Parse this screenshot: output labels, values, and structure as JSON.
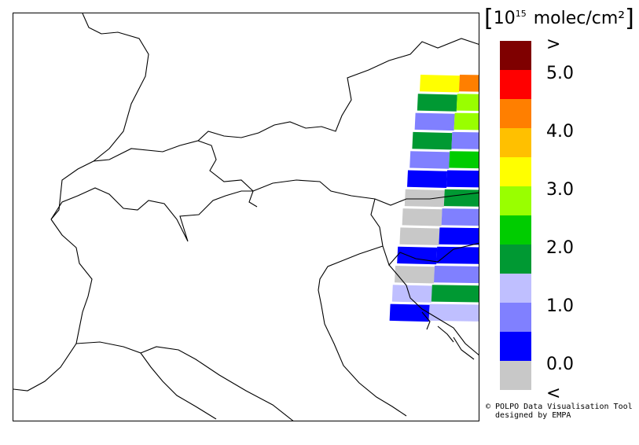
{
  "legend": {
    "unit_prefix": "10",
    "unit_exponent": "15",
    "unit_suffix": "molec/cm²",
    "classes": [
      {
        "color": "#7f0000",
        "label": ">"
      },
      {
        "color": "#ff0000",
        "label": "5.0"
      },
      {
        "color": "#ff7f00",
        "label": ""
      },
      {
        "color": "#ffc000",
        "label": "4.0"
      },
      {
        "color": "#ffff00",
        "label": ""
      },
      {
        "color": "#99ff00",
        "label": "3.0"
      },
      {
        "color": "#00cc00",
        "label": ""
      },
      {
        "color": "#009933",
        "label": "2.0"
      },
      {
        "color": "#bfbfff",
        "label": ""
      },
      {
        "color": "#8080ff",
        "label": "1.0"
      },
      {
        "color": "#0000ff",
        "label": ""
      },
      {
        "color": "#c8c8c8",
        "label": "0.0"
      },
      {
        "color": "",
        "label": "<"
      }
    ]
  },
  "swath_rows": [
    [
      "#ffff00",
      "#ff7f00"
    ],
    [
      "#009933",
      "#99ff00"
    ],
    [
      "#8080ff",
      "#99ff00"
    ],
    [
      "#009933",
      "#8080ff"
    ],
    [
      "#8080ff",
      "#00cc00"
    ],
    [
      "#0000ff",
      "#0000ff"
    ],
    [
      "#c8c8c8",
      "#009933"
    ],
    [
      "#c8c8c8",
      "#8080ff"
    ],
    [
      "#c8c8c8",
      "#0000ff"
    ],
    [
      "#0000ff",
      "#0000ff"
    ],
    [
      "#c8c8c8",
      "#8080ff"
    ],
    [
      "#bfbfff",
      "#009933"
    ],
    [
      "#0000ff",
      "#bfbfff"
    ]
  ],
  "credit": {
    "line1": "© POLPO Data Visualisation Tool",
    "line2": "  designed by EMPA"
  }
}
